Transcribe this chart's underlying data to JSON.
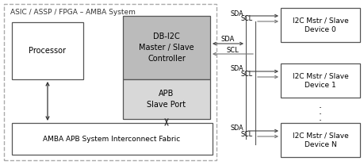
{
  "title": "ASIC / ASSP / FPGA – AMBA System",
  "processor_label": "Processor",
  "fabric_label": "AMBA APB System Interconnect Fabric",
  "controller_top_label": "DB-I2C\nMaster / Slave\nController",
  "controller_bot_label": "APB\nSlave Port",
  "devices": [
    {
      "label": "I2C Mstr / Slave\nDevice 0"
    },
    {
      "label": "I2C Mstr / Slave\nDevice 1"
    },
    {
      "label": "I2C Mstr / Slave\nDevice N"
    }
  ],
  "sda_label": "SDA",
  "scl_label": "SCL",
  "bg_color": "#ffffff",
  "line_color": "#444444",
  "gray_line": "#999999",
  "outer_ec": "#aaaaaa",
  "box_ec": "#555555",
  "ctrl_top_fc": "#bbbbbb",
  "ctrl_bot_fc": "#d8d8d8",
  "white_fc": "#ffffff",
  "font_size": 6.5,
  "label_fontsize": 6.0
}
